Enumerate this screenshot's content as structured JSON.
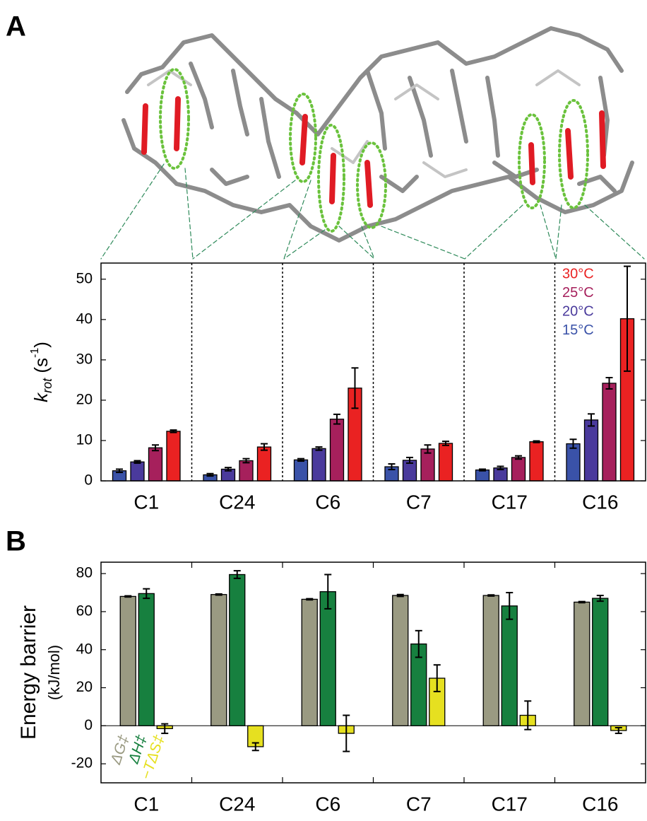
{
  "chart_data": [
    {
      "type": "bar",
      "panel": "A",
      "ylabel": [
        "k",
        "rot",
        " (s",
        "-1",
        ")"
      ],
      "categories": [
        "C1",
        "C24",
        "C6",
        "C7",
        "C17",
        "C16"
      ],
      "series": [
        {
          "name": "15°C",
          "color": "#3a52a8",
          "values": [
            2.5,
            1.5,
            5.2,
            3.5,
            2.7,
            9.2
          ],
          "errors": [
            0.4,
            0.3,
            0.3,
            0.7,
            0.2,
            1.1
          ]
        },
        {
          "name": "20°C",
          "color": "#4a3a9c",
          "values": [
            4.7,
            2.9,
            8.0,
            5.1,
            3.2,
            15.1
          ],
          "errors": [
            0.3,
            0.4,
            0.4,
            0.7,
            0.4,
            1.5
          ]
        },
        {
          "name": "25°C",
          "color": "#a6205c",
          "values": [
            8.2,
            5.0,
            15.3,
            7.9,
            5.8,
            24.2
          ],
          "errors": [
            0.7,
            0.5,
            1.2,
            1.0,
            0.4,
            1.4
          ]
        },
        {
          "name": "30°C",
          "color": "#ea2222",
          "values": [
            12.3,
            8.4,
            23,
            9.3,
            9.7,
            40.2
          ],
          "errors": [
            0.3,
            0.8,
            5,
            0.5,
            0.2,
            13
          ]
        }
      ],
      "ylim": [
        0,
        54
      ],
      "yticks": [
        0,
        10,
        20,
        30,
        40,
        50
      ],
      "legend": "upper right"
    },
    {
      "type": "bar",
      "panel": "B",
      "ylabel": [
        "Energy barrier",
        "(kJ/mol)"
      ],
      "categories": [
        "C1",
        "C24",
        "C6",
        "C7",
        "C17",
        "C16"
      ],
      "series": [
        {
          "name": "ΔG‡",
          "color": "#9a9a82",
          "values": [
            68,
            69,
            66.5,
            68.5,
            68.5,
            65
          ],
          "errors": [
            0.3,
            0.3,
            0.3,
            0.5,
            0.3,
            0.3
          ]
        },
        {
          "name": "ΔH‡",
          "color": "#17803f",
          "values": [
            69.5,
            79.5,
            70.5,
            43,
            63,
            67
          ],
          "errors": [
            2.5,
            2,
            9,
            7,
            7,
            1.5
          ]
        },
        {
          "name": "−TΔS‡",
          "color": "#e6e020",
          "values": [
            -1.5,
            -11,
            -4,
            25,
            5.5,
            -2.5
          ],
          "errors": [
            2.5,
            2,
            9.5,
            7,
            7.5,
            1.5
          ]
        }
      ],
      "ylim": [
        -30,
        86
      ],
      "yticks": [
        -20,
        0,
        20,
        40,
        60,
        80
      ],
      "legend": "lower left"
    }
  ]
}
